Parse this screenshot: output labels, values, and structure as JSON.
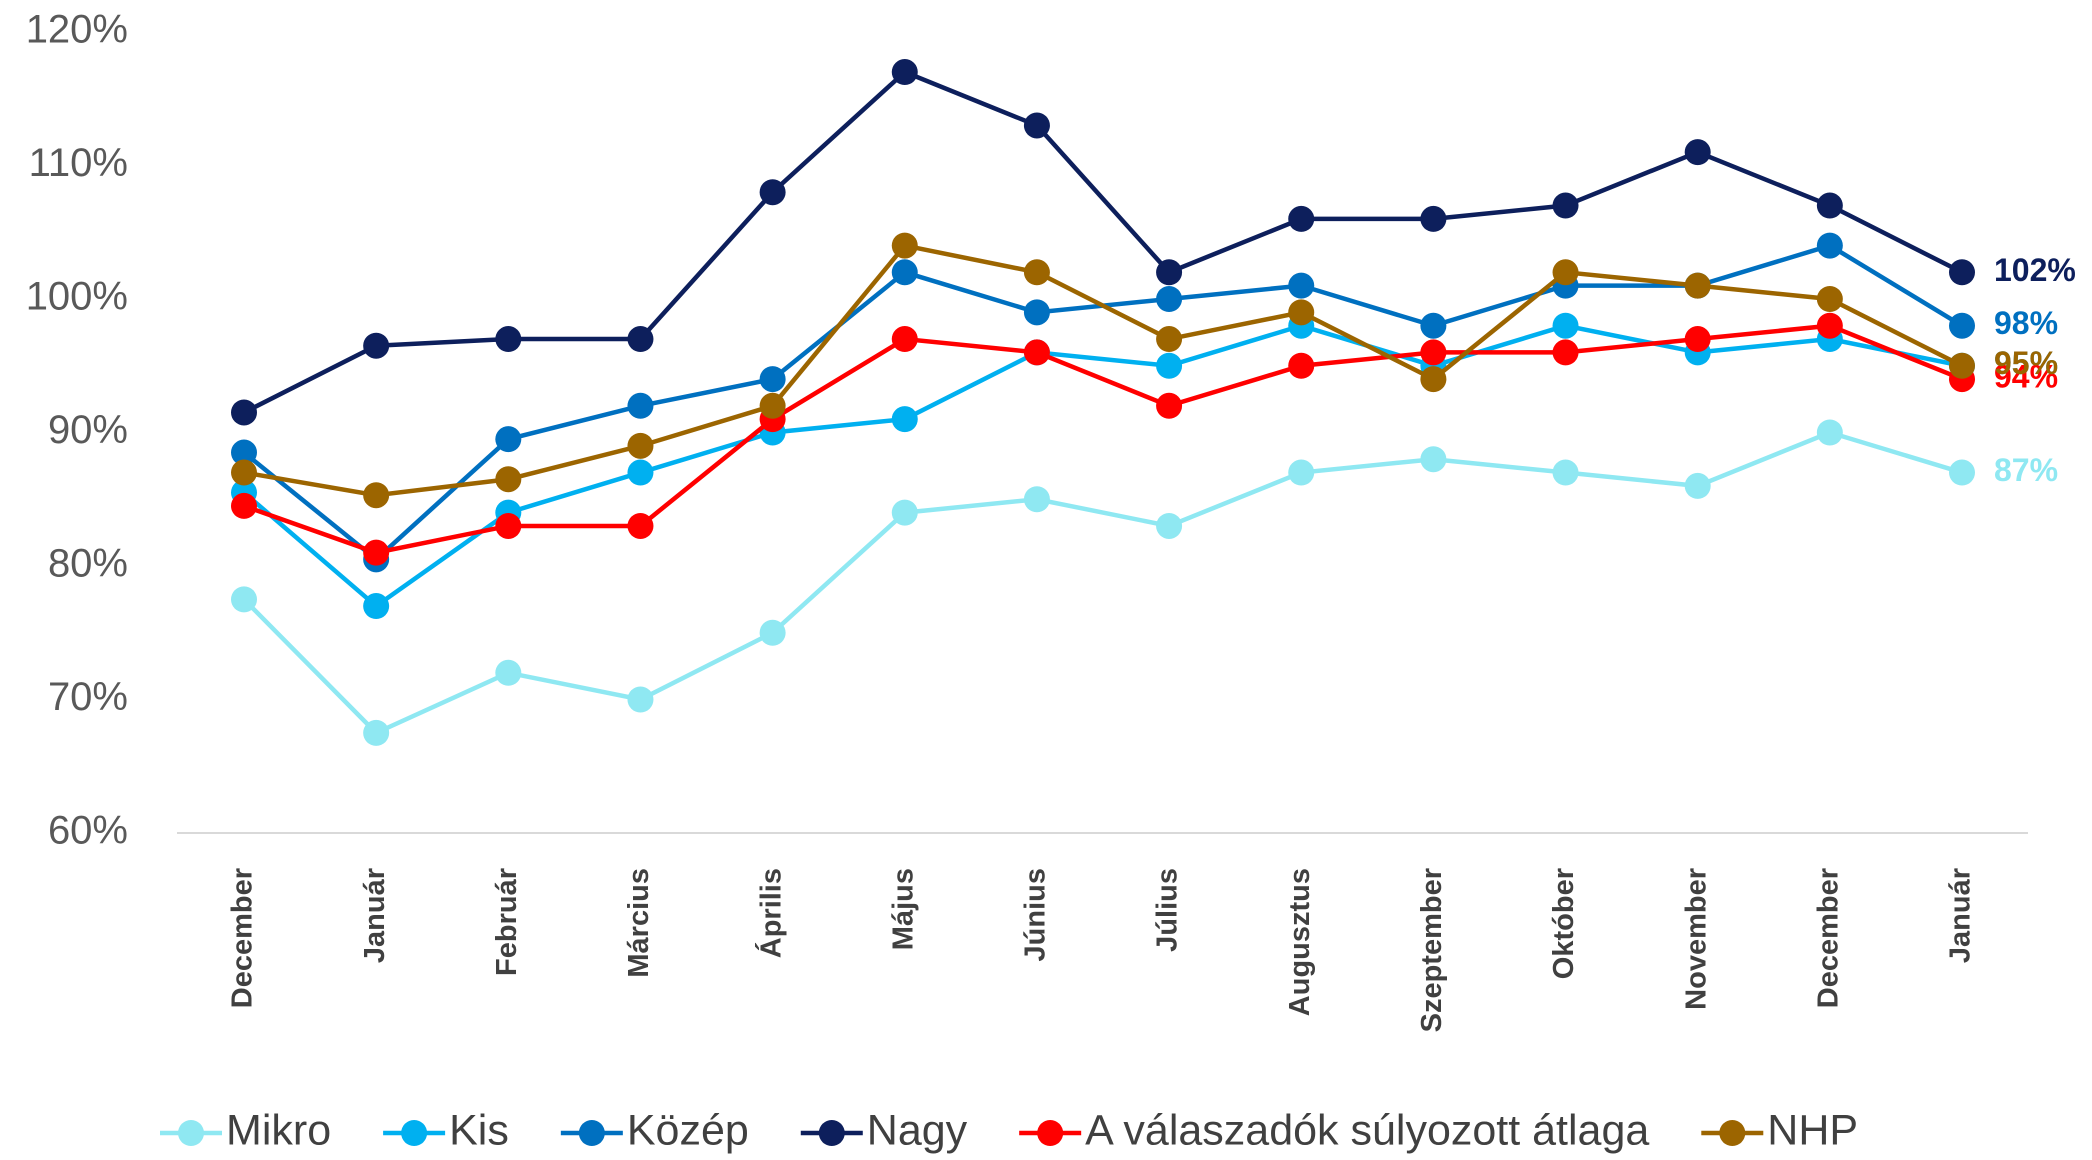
{
  "chart_data": {
    "type": "line",
    "categories": [
      "December",
      "Január",
      "Február",
      "Március",
      "Április",
      "Május",
      "Június",
      "Július",
      "Augusztus",
      "Szeptember",
      "Október",
      "November",
      "December",
      "Január"
    ],
    "ylim": [
      60,
      120
    ],
    "yticks": [
      {
        "value": 60,
        "label": "60%"
      },
      {
        "value": 70,
        "label": "70%"
      },
      {
        "value": 80,
        "label": "80%"
      },
      {
        "value": 90,
        "label": "90%"
      },
      {
        "value": 100,
        "label": "100%"
      },
      {
        "value": 110,
        "label": "110%"
      },
      {
        "value": 120,
        "label": "120%"
      }
    ],
    "grid": false,
    "legend": "bottom",
    "series": [
      {
        "name": "Mikro",
        "color": "#8fe8f2",
        "values": [
          77.5,
          67.5,
          72,
          70,
          75,
          84,
          85,
          83,
          87,
          88,
          87,
          86,
          90,
          87
        ],
        "value_labels": [
          null,
          null,
          null,
          null,
          null,
          null,
          null,
          null,
          null,
          null,
          null,
          null,
          null,
          "87%"
        ]
      },
      {
        "name": "Kis",
        "color": "#00b0f0",
        "values": [
          85.5,
          77,
          84,
          87,
          90,
          91,
          96,
          95,
          98,
          95,
          98,
          96,
          97,
          95
        ],
        "value_labels": [
          null,
          null,
          null,
          null,
          null,
          null,
          null,
          null,
          null,
          null,
          null,
          null,
          null,
          "95%"
        ]
      },
      {
        "name": "Közép",
        "color": "#0070c0",
        "values": [
          88.5,
          80.5,
          89.5,
          92,
          94,
          102,
          99,
          100,
          101,
          98,
          101,
          101,
          104,
          98
        ],
        "value_labels": [
          null,
          null,
          null,
          null,
          null,
          null,
          null,
          null,
          null,
          null,
          null,
          null,
          null,
          "98%"
        ]
      },
      {
        "name": "Nagy",
        "color": "#0d1f5c",
        "values": [
          91.5,
          96.5,
          97,
          97,
          108,
          117,
          113,
          102,
          106,
          106,
          107,
          111,
          107,
          102
        ],
        "value_labels": [
          null,
          null,
          null,
          null,
          null,
          null,
          null,
          null,
          null,
          null,
          null,
          null,
          null,
          "102%"
        ]
      },
      {
        "name": "A válaszadók súlyozott átlaga",
        "color": "#ff0000",
        "values": [
          84.5,
          81,
          83,
          83,
          91,
          97,
          96,
          92,
          95,
          96,
          96,
          97,
          98,
          94
        ],
        "value_labels": [
          null,
          null,
          null,
          null,
          null,
          null,
          null,
          null,
          null,
          null,
          null,
          null,
          null,
          "94%"
        ]
      },
      {
        "name": "NHP",
        "color": "#9c6500",
        "values": [
          87,
          85.3,
          86.5,
          89,
          92,
          104,
          102,
          97,
          99,
          94,
          102,
          101,
          100,
          95
        ],
        "value_labels": [
          null,
          null,
          null,
          null,
          null,
          null,
          null,
          null,
          null,
          null,
          null,
          null,
          null,
          "95%"
        ]
      }
    ]
  }
}
